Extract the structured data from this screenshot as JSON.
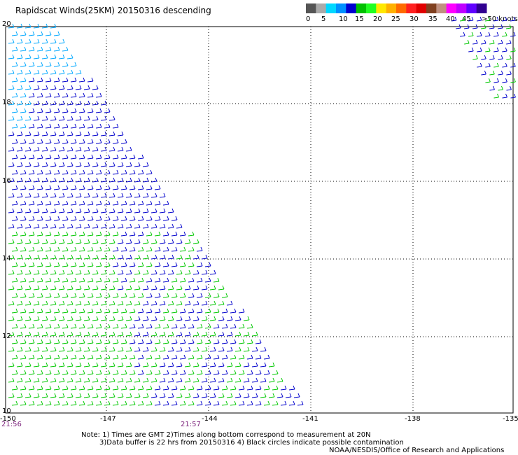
{
  "title": "Rapidscat Winds(25KM) 20150316 descending",
  "legend": {
    "ticks": [
      "0",
      "5",
      "10",
      "15",
      "20",
      "25",
      "30",
      "35",
      "40",
      "45",
      ">50 knots"
    ],
    "colors": [
      "#555555",
      "#aaaaaa",
      "#00d8ff",
      "#0090ff",
      "#0000d0",
      "#00c000",
      "#20ff20",
      "#ffe800",
      "#ffb000",
      "#ff6a00",
      "#ff2020",
      "#e00000",
      "#804020",
      "#c09080",
      "#ff00ff",
      "#c000ff",
      "#6000ff",
      "#300090"
    ]
  },
  "axes": {
    "lon_labels": [
      "-150",
      "-147",
      "-144",
      "-141",
      "-138",
      "-135"
    ],
    "lat_labels": [
      "20",
      "18",
      "16",
      "14",
      "12",
      "10"
    ]
  },
  "times": [
    "21:56",
    "21:57"
  ],
  "notes": {
    "line1": "Note: 1) Times are GMT 2)Times along bottom correspond to measurement at 20N",
    "line2": "3)Data buffer is 22 hrs from 20150316 4) Black circles indicate possible contamination",
    "line3": "NOAA/NESDIS/Office of Research and Applications"
  },
  "wind_colors": {
    "cyan": "#00a8ff",
    "blue": "#0000cc",
    "green": "#00c800"
  }
}
